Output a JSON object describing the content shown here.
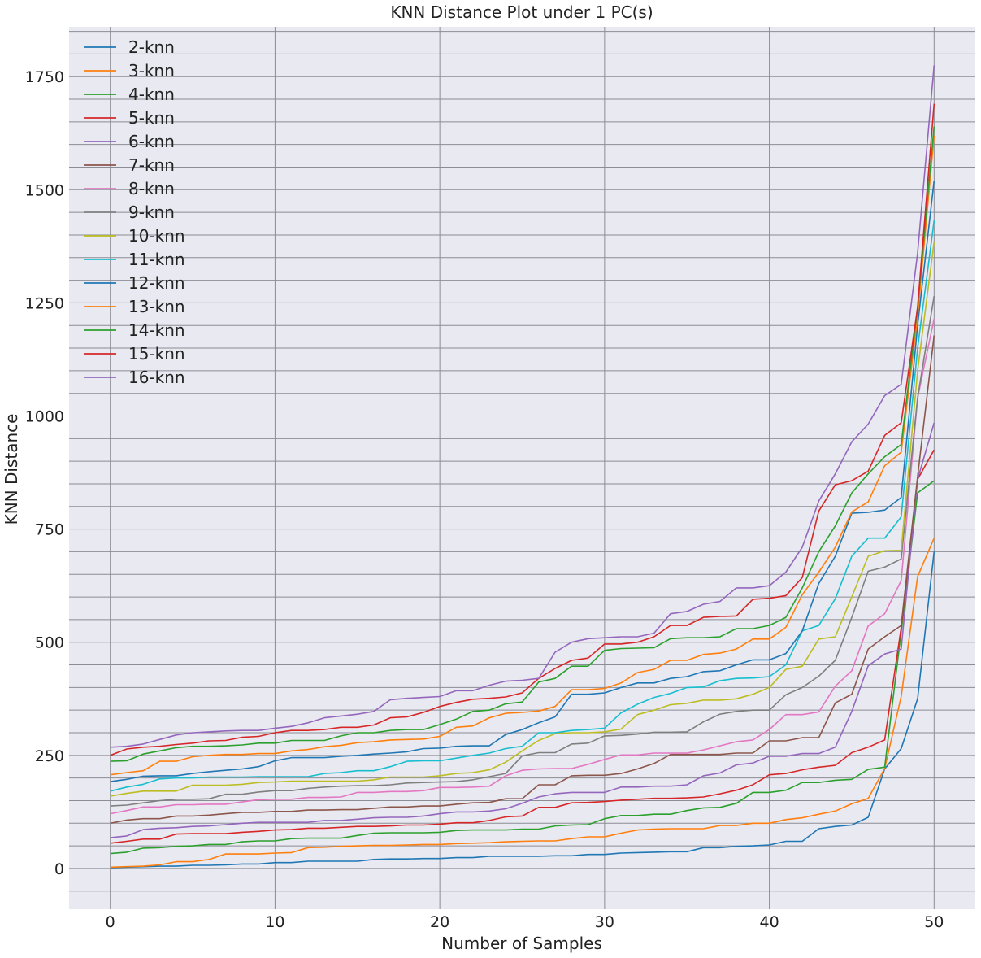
{
  "chart_data": {
    "type": "line",
    "title": "KNN Distance Plot under 1 PC(s)",
    "xlabel": "Number of Samples",
    "ylabel": "KNN Distance",
    "xlim": [
      -2.5,
      52.5
    ],
    "ylim": [
      -90,
      1860
    ],
    "xticks": [
      0,
      10,
      20,
      30,
      40,
      50
    ],
    "yticks": [
      0,
      250,
      500,
      750,
      1000,
      1250,
      1500,
      1750
    ],
    "grid": true,
    "legend": "upper-left",
    "background": "#e9e9f1",
    "grid_color": "#8c8c94",
    "x": [
      0,
      1,
      2,
      3,
      4,
      5,
      6,
      7,
      8,
      9,
      10,
      11,
      12,
      13,
      14,
      15,
      16,
      17,
      18,
      19,
      20,
      21,
      22,
      23,
      24,
      25,
      26,
      27,
      28,
      29,
      30,
      31,
      32,
      33,
      34,
      35,
      36,
      37,
      38,
      39,
      40,
      41,
      42,
      43,
      44,
      45,
      46,
      47,
      48,
      49,
      50
    ],
    "series": [
      {
        "name": "2-knn",
        "color": "#1f77b4",
        "values": [
          2,
          3,
          4,
          5,
          5,
          7,
          7,
          8,
          10,
          10,
          13,
          13,
          16,
          16,
          16,
          16,
          20,
          21,
          21,
          22,
          22,
          24,
          24,
          27,
          27,
          27,
          27,
          28,
          28,
          31,
          31,
          34,
          35,
          36,
          37,
          37,
          46,
          46,
          49,
          50,
          52,
          60,
          60,
          88,
          93,
          96,
          113,
          220,
          265,
          375,
          700
        ]
      },
      {
        "name": "3-knn",
        "color": "#ff7f0e",
        "values": [
          3,
          4,
          5,
          8,
          15,
          15,
          20,
          32,
          32,
          32,
          34,
          35,
          46,
          47,
          49,
          50,
          51,
          51,
          52,
          53,
          53,
          55,
          56,
          57,
          59,
          60,
          61,
          61,
          66,
          70,
          70,
          78,
          85,
          87,
          88,
          88,
          88,
          95,
          95,
          100,
          100,
          108,
          112,
          120,
          127,
          143,
          155,
          221,
          380,
          645,
          730
        ]
      },
      {
        "name": "4-knn",
        "color": "#2ca02c",
        "values": [
          33,
          36,
          45,
          46,
          49,
          50,
          53,
          53,
          59,
          61,
          61,
          66,
          67,
          67,
          67,
          73,
          78,
          79,
          79,
          79,
          80,
          84,
          85,
          85,
          85,
          87,
          87,
          94,
          96,
          97,
          110,
          117,
          117,
          120,
          120,
          128,
          134,
          135,
          144,
          168,
          168,
          173,
          190,
          190,
          195,
          197,
          219,
          224,
          523,
          830,
          857
        ]
      },
      {
        "name": "5-knn",
        "color": "#d62728",
        "values": [
          56,
          60,
          65,
          65,
          76,
          77,
          77,
          77,
          80,
          82,
          85,
          86,
          89,
          89,
          91,
          93,
          93,
          94,
          96,
          96,
          98,
          101,
          101,
          106,
          114,
          116,
          135,
          135,
          145,
          146,
          148,
          151,
          153,
          155,
          155,
          156,
          158,
          165,
          173,
          185,
          207,
          210,
          218,
          224,
          228,
          256,
          268,
          284,
          532,
          860,
          925
        ]
      },
      {
        "name": "6-knn",
        "color": "#9467bd",
        "values": [
          68,
          72,
          86,
          89,
          90,
          93,
          94,
          97,
          100,
          102,
          102,
          102,
          102,
          106,
          106,
          109,
          112,
          113,
          113,
          116,
          121,
          125,
          125,
          127,
          132,
          144,
          158,
          165,
          168,
          168,
          168,
          180,
          180,
          182,
          182,
          185,
          205,
          211,
          229,
          233,
          248,
          248,
          254,
          254,
          268,
          347,
          448,
          474,
          485,
          860,
          985
        ]
      },
      {
        "name": "7-knn",
        "color": "#8c564b",
        "values": [
          100,
          107,
          110,
          110,
          116,
          116,
          118,
          121,
          124,
          124,
          126,
          126,
          129,
          129,
          130,
          130,
          133,
          136,
          136,
          138,
          138,
          142,
          145,
          146,
          154,
          154,
          185,
          185,
          205,
          206,
          206,
          210,
          220,
          232,
          252,
          252,
          252,
          252,
          255,
          255,
          282,
          282,
          289,
          289,
          366,
          385,
          485,
          512,
          537,
          866,
          1178
        ]
      },
      {
        "name": "8-knn",
        "color": "#e377c2",
        "values": [
          121,
          128,
          136,
          136,
          141,
          141,
          142,
          142,
          147,
          152,
          153,
          153,
          157,
          157,
          158,
          168,
          168,
          170,
          170,
          172,
          179,
          179,
          180,
          182,
          205,
          217,
          220,
          221,
          221,
          230,
          241,
          251,
          251,
          255,
          255,
          255,
          262,
          271,
          280,
          284,
          307,
          340,
          340,
          346,
          403,
          437,
          536,
          563,
          636,
          1040,
          1215
        ]
      },
      {
        "name": "9-knn",
        "color": "#7f7f7f",
        "values": [
          138,
          140,
          145,
          150,
          153,
          153,
          154,
          164,
          164,
          169,
          172,
          172,
          177,
          180,
          182,
          183,
          183,
          185,
          189,
          190,
          191,
          192,
          196,
          203,
          210,
          249,
          256,
          256,
          275,
          277,
          293,
          294,
          297,
          301,
          301,
          302,
          324,
          341,
          347,
          350,
          350,
          384,
          400,
          425,
          460,
          555,
          657,
          666,
          684,
          1040,
          1265
        ]
      },
      {
        "name": "10-knn",
        "color": "#bcbd22",
        "values": [
          160,
          166,
          171,
          171,
          171,
          184,
          184,
          184,
          186,
          190,
          191,
          193,
          193,
          193,
          193,
          193,
          196,
          202,
          202,
          202,
          205,
          210,
          212,
          218,
          235,
          260,
          283,
          298,
          300,
          300,
          302,
          308,
          340,
          350,
          362,
          365,
          372,
          372,
          375,
          385,
          400,
          440,
          447,
          507,
          512,
          600,
          690,
          702,
          703,
          1100,
          1385
        ]
      },
      {
        "name": "11-knn",
        "color": "#17becf",
        "values": [
          171,
          180,
          186,
          198,
          200,
          200,
          202,
          202,
          202,
          203,
          203,
          203,
          203,
          210,
          212,
          216,
          216,
          225,
          237,
          238,
          238,
          244,
          250,
          255,
          265,
          270,
          300,
          300,
          305,
          307,
          310,
          344,
          363,
          378,
          387,
          400,
          401,
          415,
          420,
          421,
          424,
          450,
          525,
          537,
          596,
          690,
          730,
          730,
          777,
          1150,
          1432
        ]
      },
      {
        "name": "12-knn",
        "color": "#1f77b4",
        "values": [
          192,
          197,
          204,
          205,
          205,
          210,
          214,
          217,
          220,
          225,
          238,
          245,
          245,
          245,
          248,
          250,
          253,
          255,
          258,
          265,
          266,
          270,
          271,
          271,
          296,
          307,
          322,
          335,
          385,
          385,
          388,
          400,
          410,
          410,
          420,
          424,
          435,
          437,
          450,
          461,
          461,
          475,
          525,
          630,
          690,
          785,
          787,
          792,
          820,
          1200,
          1520
        ]
      },
      {
        "name": "13-knn",
        "color": "#ff7f0e",
        "values": [
          207,
          212,
          216,
          237,
          237,
          247,
          250,
          252,
          252,
          254,
          254,
          260,
          263,
          269,
          272,
          278,
          280,
          284,
          285,
          286,
          292,
          312,
          315,
          333,
          343,
          345,
          348,
          358,
          395,
          395,
          398,
          410,
          433,
          440,
          460,
          460,
          473,
          476,
          485,
          507,
          507,
          533,
          605,
          655,
          710,
          788,
          810,
          890,
          920,
          1220,
          1620
        ]
      },
      {
        "name": "14-knn",
        "color": "#2ca02c",
        "values": [
          237,
          238,
          253,
          260,
          267,
          270,
          270,
          271,
          273,
          277,
          277,
          283,
          283,
          283,
          293,
          300,
          300,
          305,
          307,
          307,
          318,
          330,
          347,
          350,
          364,
          368,
          412,
          420,
          447,
          447,
          482,
          486,
          487,
          488,
          508,
          510,
          510,
          512,
          530,
          530,
          537,
          555,
          620,
          700,
          757,
          830,
          872,
          910,
          937,
          1240,
          1640
        ]
      },
      {
        "name": "15-knn",
        "color": "#d62728",
        "values": [
          250,
          264,
          268,
          270,
          274,
          277,
          282,
          283,
          290,
          292,
          300,
          305,
          305,
          307,
          312,
          312,
          317,
          333,
          335,
          345,
          358,
          367,
          374,
          376,
          379,
          388,
          420,
          442,
          460,
          465,
          496,
          496,
          500,
          512,
          537,
          537,
          555,
          557,
          558,
          595,
          597,
          603,
          643,
          790,
          848,
          857,
          878,
          957,
          985,
          1240,
          1690
        ]
      },
      {
        "name": "16-knn",
        "color": "#9467bd",
        "values": [
          268,
          270,
          275,
          285,
          295,
          300,
          302,
          304,
          305,
          305,
          310,
          314,
          322,
          333,
          337,
          341,
          347,
          373,
          376,
          378,
          380,
          393,
          393,
          405,
          414,
          416,
          420,
          478,
          500,
          508,
          510,
          512,
          512,
          520,
          563,
          568,
          584,
          590,
          620,
          620,
          625,
          655,
          710,
          812,
          872,
          943,
          982,
          1045,
          1070,
          1360,
          1775
        ]
      }
    ]
  }
}
